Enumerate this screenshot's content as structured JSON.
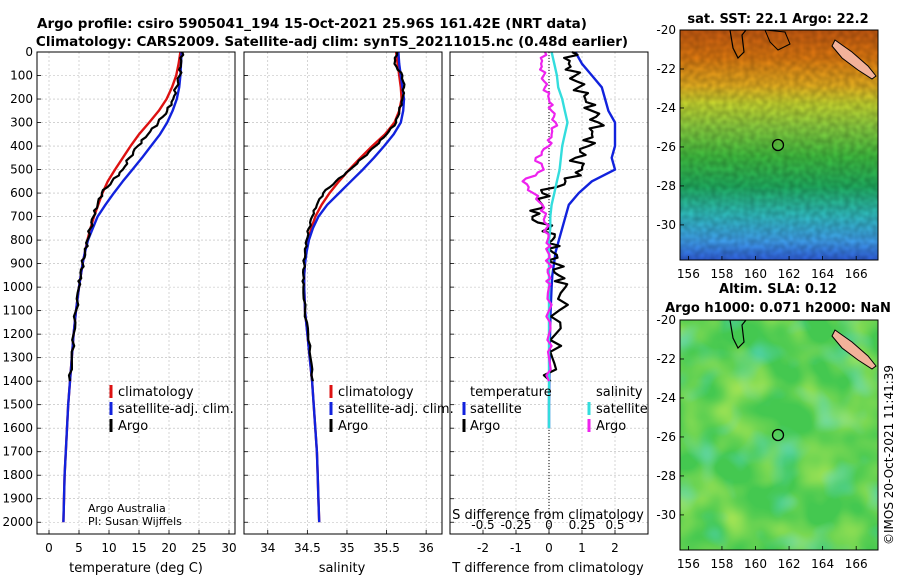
{
  "title": {
    "line1": "Argo profile: csiro 5905041_194 15-Oct-2021 25.96S 161.42E (NRT data)",
    "line2": "Climatology: CARS2009. Satellite-adj clim: synTS_20211015.nc (0.48d earlier)"
  },
  "colors": {
    "clim": "#dd1111",
    "sat": "#1122dd",
    "argo": "#000000",
    "sat_s": "#33dddd",
    "argo_s": "#ee22ee"
  },
  "credit": {
    "line1": "Argo Australia",
    "line2": "PI: Susan Wijffels"
  },
  "timestamp": "©IMOS 20-Oct-2021 11:41:39",
  "chart_data": [
    {
      "id": "temperature",
      "type": "line",
      "xlabel": "temperature (deg C)",
      "ylabel": "depth",
      "xlim": [
        -2,
        31
      ],
      "ylim": [
        2050,
        0
      ],
      "xticks": [
        "0",
        "5",
        "10",
        "15",
        "20",
        "25",
        "30"
      ],
      "yticks": [
        "0",
        "100",
        "200",
        "300",
        "400",
        "500",
        "600",
        "700",
        "800",
        "900",
        "1000",
        "1100",
        "1200",
        "1300",
        "1400",
        "1500",
        "1600",
        "1700",
        "1800",
        "1900",
        "2000"
      ],
      "depth": [
        0,
        50,
        100,
        150,
        200,
        250,
        300,
        350,
        400,
        450,
        500,
        550,
        600,
        650,
        700,
        750,
        800,
        850,
        900,
        950,
        1000,
        1100,
        1200,
        1300,
        1400,
        1500,
        1600,
        1700,
        1800,
        1900,
        2000
      ],
      "legend": [
        "climatology",
        "satellite-adj. clim.",
        "Argo"
      ],
      "series": [
        {
          "name": "climatology",
          "values": [
            21.9,
            21.6,
            21.2,
            20.5,
            19.6,
            18.3,
            16.7,
            15.0,
            13.6,
            12.3,
            11.0,
            9.8,
            8.9,
            8.2,
            7.5,
            6.9,
            6.4,
            6.0,
            5.6,
            5.3,
            5.0,
            4.5,
            4.1,
            3.8,
            3.5,
            3.2,
            3.0,
            2.8,
            2.6,
            2.5,
            2.4
          ]
        },
        {
          "name": "satellite-adj. clim.",
          "values": [
            22.1,
            22.0,
            21.9,
            21.7,
            21.3,
            20.6,
            19.7,
            18.5,
            17.0,
            15.5,
            13.9,
            12.3,
            10.8,
            9.4,
            8.1,
            7.3,
            6.5,
            6.0,
            5.6,
            5.3,
            5.0,
            4.5,
            4.1,
            3.8,
            3.5,
            3.2,
            3.0,
            2.8,
            2.6,
            2.5,
            2.4
          ]
        },
        {
          "name": "Argo",
          "values": [
            22.2,
            22.0,
            21.8,
            21.2,
            20.7,
            19.7,
            18.2,
            16.5,
            14.8,
            13.4,
            12.3,
            10.5,
            8.8,
            8.1,
            7.4,
            6.9,
            6.4,
            6.0,
            5.6,
            5.3,
            5.0,
            4.5,
            4.1,
            3.8,
            3.5,
            null,
            null,
            null,
            null,
            null,
            null
          ]
        }
      ]
    },
    {
      "id": "salinity",
      "type": "line",
      "xlabel": "salinity",
      "xlim": [
        33.7,
        36.2
      ],
      "ylim": [
        2050,
        0
      ],
      "xticks": [
        "34",
        "34.5",
        "35",
        "35.5",
        "36"
      ],
      "depth": [
        0,
        50,
        100,
        150,
        200,
        250,
        300,
        350,
        400,
        450,
        500,
        550,
        600,
        650,
        700,
        750,
        800,
        850,
        900,
        950,
        1000,
        1100,
        1200,
        1300,
        1400,
        1500,
        1600,
        1700,
        1800,
        1900,
        2000
      ],
      "legend": [
        "climatology",
        "satellite-adj. clim.",
        "Argo"
      ],
      "series": [
        {
          "name": "climatology",
          "values": [
            35.62,
            35.64,
            35.66,
            35.68,
            35.69,
            35.66,
            35.6,
            35.48,
            35.32,
            35.17,
            35.03,
            34.9,
            34.78,
            34.68,
            34.6,
            34.55,
            34.51,
            34.48,
            34.47,
            34.46,
            34.46,
            34.47,
            34.5,
            34.53,
            34.56,
            34.58,
            34.6,
            34.62,
            34.63,
            34.64,
            34.65
          ]
        },
        {
          "name": "satellite-adj. clim.",
          "values": [
            35.65,
            35.66,
            35.68,
            35.7,
            35.72,
            35.71,
            35.68,
            35.59,
            35.47,
            35.34,
            35.2,
            35.05,
            34.9,
            34.75,
            34.64,
            34.57,
            34.52,
            34.49,
            34.47,
            34.46,
            34.46,
            34.47,
            34.5,
            34.53,
            34.56,
            34.58,
            34.6,
            34.62,
            34.63,
            34.64,
            34.65
          ]
        },
        {
          "name": "Argo",
          "values": [
            35.63,
            35.6,
            35.7,
            35.72,
            35.7,
            35.66,
            35.62,
            35.5,
            35.36,
            35.2,
            35.04,
            34.86,
            34.7,
            34.62,
            34.56,
            34.52,
            34.49,
            34.47,
            34.46,
            34.45,
            34.45,
            34.47,
            34.51,
            34.54,
            34.57,
            null,
            null,
            null,
            null,
            null,
            null
          ]
        }
      ]
    },
    {
      "id": "difference",
      "type": "line",
      "xlabel": "T difference from climatology",
      "x2label": "S difference from climatology",
      "xlim": [
        -3,
        3
      ],
      "ylim": [
        2050,
        0
      ],
      "xticks": [
        "-2",
        "-1",
        "0",
        "1",
        "2"
      ],
      "x2ticks": [
        "-0.5",
        "-0.25",
        "0",
        "0.25",
        "0.5"
      ],
      "depth": [
        0,
        50,
        100,
        150,
        200,
        250,
        300,
        350,
        400,
        450,
        500,
        550,
        600,
        650,
        700,
        750,
        800,
        850,
        900,
        950,
        1000,
        1100,
        1200,
        1300,
        1400,
        1500,
        1600
      ],
      "legend_left_title": "temperature",
      "legend_right_title": "salinity",
      "legend_left": [
        "satellite",
        "Argo"
      ],
      "legend_right": [
        "satellite",
        "Argo"
      ],
      "series": [
        {
          "name": "temperature satellite",
          "values": [
            0.8,
            1.0,
            1.3,
            1.6,
            1.7,
            1.8,
            2.0,
            2.0,
            2.0,
            1.9,
            2.0,
            1.3,
            0.9,
            0.6,
            0.5,
            0.4,
            0.3,
            0.2,
            0.15,
            0.1,
            0.08,
            0.05,
            0.03,
            0.02,
            0.01,
            0.0,
            0.0
          ]
        },
        {
          "name": "temperature Argo",
          "values": [
            0.7,
            0.6,
            0.8,
            0.9,
            1.1,
            1.3,
            1.5,
            1.3,
            1.2,
            0.8,
            1.0,
            0.5,
            -0.2,
            -0.2,
            -0.5,
            0.0,
            0.1,
            0.1,
            0.2,
            0.3,
            0.5,
            0.3,
            0.2,
            0.1,
            0.05,
            null,
            null
          ]
        },
        {
          "name": "salinity satellite",
          "values": [
            0.02,
            0.04,
            0.06,
            0.07,
            0.1,
            0.12,
            0.14,
            0.12,
            0.1,
            0.09,
            0.08,
            0.06,
            0.04,
            0.02,
            0.01,
            0.01,
            0.0,
            0.0,
            0.0,
            0.0,
            0.0,
            0.0,
            0.0,
            0.0,
            0.0,
            0.0,
            0.0
          ]
        },
        {
          "name": "salinity Argo",
          "values": [
            -0.03,
            -0.06,
            -0.04,
            -0.03,
            0.0,
            0.02,
            0.05,
            0.02,
            0.0,
            -0.1,
            -0.04,
            -0.2,
            -0.12,
            -0.05,
            -0.03,
            -0.02,
            -0.01,
            -0.01,
            0.0,
            0.0,
            0.0,
            0.0,
            0.0,
            0.0,
            0.0,
            null,
            null
          ]
        }
      ]
    },
    {
      "id": "sst_map",
      "type": "heatmap",
      "title": "sat. SST: 22.1 Argo: 22.2",
      "xlim": [
        155.5,
        167.3
      ],
      "ylim": [
        -31.8,
        -20
      ],
      "xticks": [
        "156",
        "158",
        "160",
        "162",
        "164",
        "166"
      ],
      "yticks": [
        "-20",
        "-22",
        "-24",
        "-26",
        "-28",
        "-30"
      ],
      "profile_marker": {
        "lon": 161.42,
        "lat": -25.96
      }
    },
    {
      "id": "sla_map",
      "type": "heatmap",
      "title1": "Altim. SLA: 0.12",
      "title2": "Argo h1000: 0.071 h2000: NaN",
      "xlim": [
        155.5,
        167.3
      ],
      "ylim": [
        -31.8,
        -20
      ],
      "xticks": [
        "156",
        "158",
        "160",
        "162",
        "164",
        "166"
      ],
      "yticks": [
        "-20",
        "-22",
        "-24",
        "-26",
        "-28",
        "-30"
      ],
      "profile_marker": {
        "lon": 161.42,
        "lat": -25.96
      }
    }
  ]
}
